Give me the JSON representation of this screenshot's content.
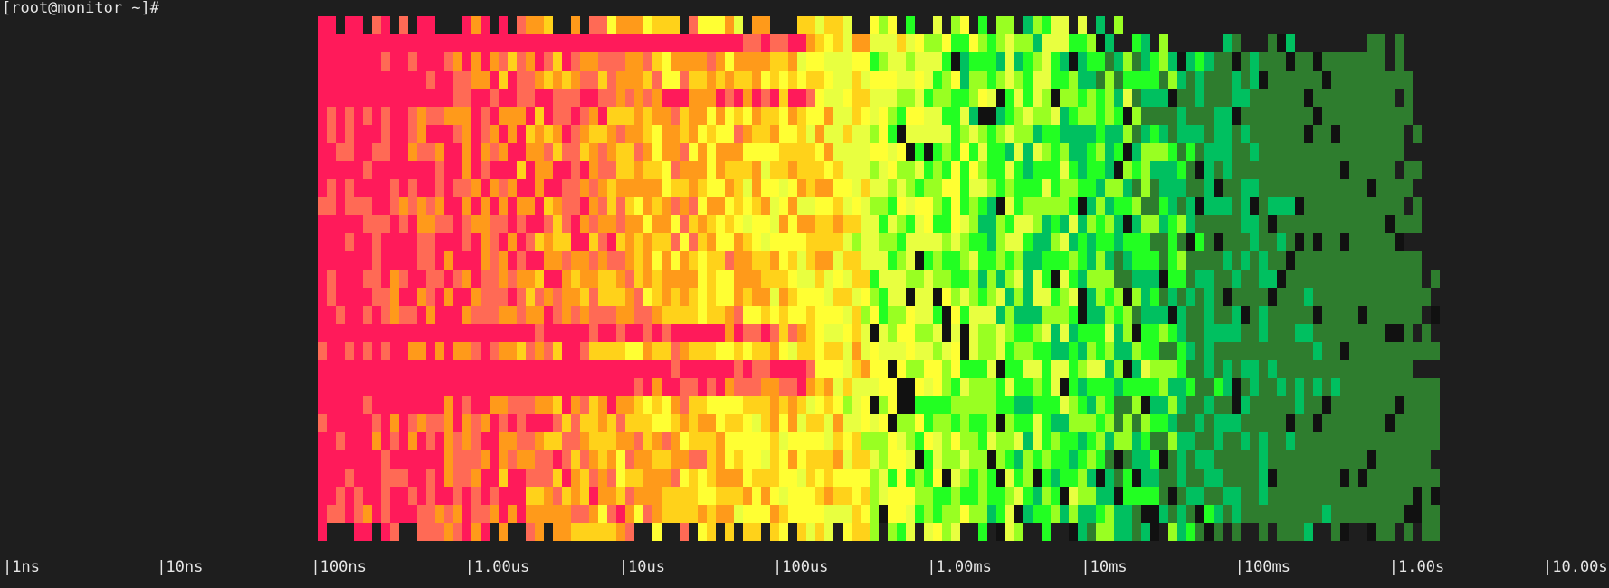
{
  "terminal": {
    "prompt": "[root@monitor ~]#"
  },
  "chart_data": {
    "type": "heatmap",
    "description_axis": "latency bins on a logarithmic time axis, rows are successive sample intervals",
    "x_scale": "log",
    "x_ticks": [
      "1ns",
      "10ns",
      "100ns",
      "1.00us",
      "10us",
      "100us",
      "1.00ms",
      "10ms",
      "100ms",
      "1.00s",
      "10.00s"
    ],
    "x_range": [
      "1ns",
      "10.00s"
    ],
    "grid": false,
    "color_scale_low_to_high": [
      "#2e7d2e",
      "#00c060",
      "#22ff22",
      "#99ff22",
      "#e8ff40",
      "#ffff33",
      "#ffd21a",
      "#ff9a1a",
      "#ff6a55",
      "#ff1a5a"
    ]
  }
}
